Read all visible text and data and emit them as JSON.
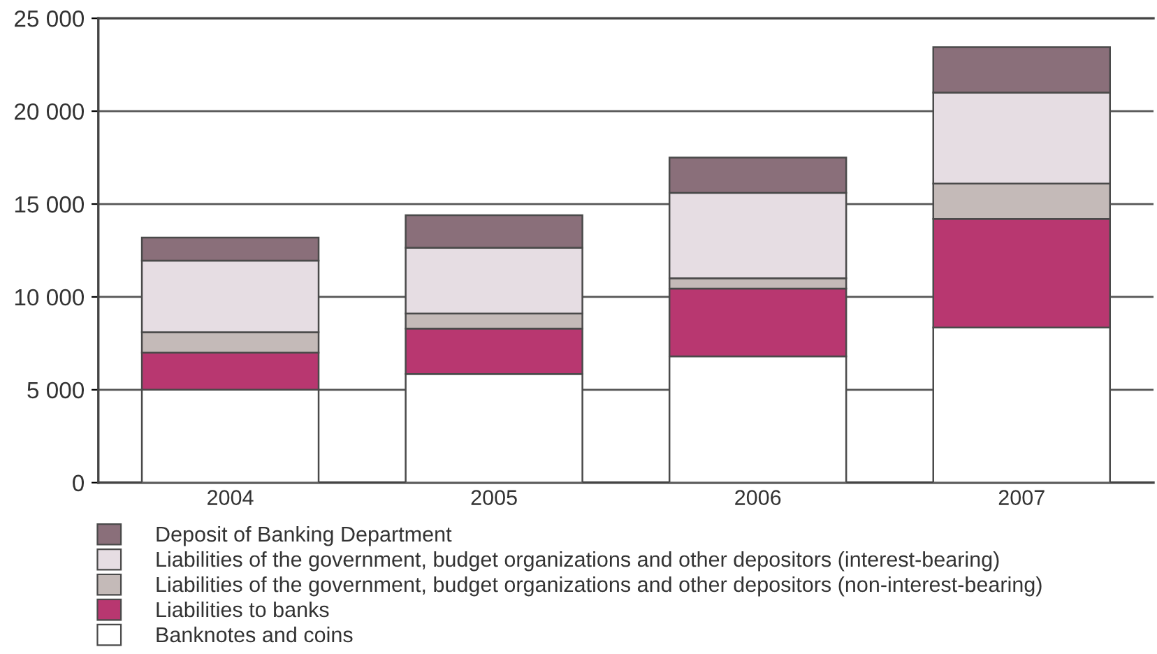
{
  "chart_data": {
    "type": "bar",
    "stacked": true,
    "categories": [
      "2004",
      "2005",
      "2006",
      "2007"
    ],
    "series": [
      {
        "name": "Banknotes and coins",
        "color": "#ffffff",
        "values": [
          5000,
          5850,
          6800,
          8350
        ]
      },
      {
        "name": "Liabilities to banks",
        "color": "#b83770",
        "values": [
          2000,
          2450,
          3650,
          5850
        ]
      },
      {
        "name": "Liabilities of the government, budget organizations and other depositors (non-interest-bearing)",
        "color": "#c4bab8",
        "values": [
          1100,
          800,
          550,
          1900
        ]
      },
      {
        "name": "Liabilities of the government, budget organizations and other depositors (interest-bearing)",
        "color": "#e6dde3",
        "values": [
          3850,
          3550,
          4600,
          4900
        ]
      },
      {
        "name": "Deposit of Banking Department",
        "color": "#8a6f7a",
        "values": [
          1250,
          1750,
          1900,
          2450
        ]
      }
    ],
    "ylim": [
      0,
      25000
    ],
    "yticks": [
      0,
      {
        "value": 5000,
        "label": "5 000"
      },
      {
        "value": 10000,
        "label": "10 000"
      },
      {
        "value": 15000,
        "label": "15 000"
      },
      {
        "value": 20000,
        "label": "20 000"
      },
      {
        "value": 25000,
        "label": "25 000"
      }
    ],
    "grid": "y",
    "legend": "bottom"
  }
}
